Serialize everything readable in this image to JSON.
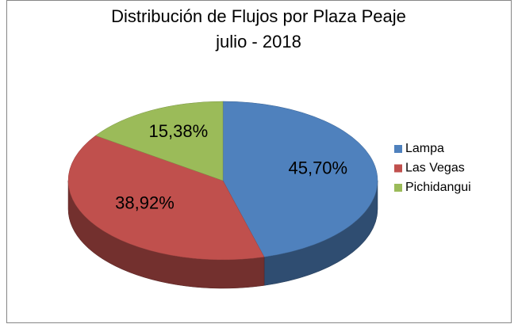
{
  "chart_data": {
    "type": "pie3d",
    "title": "Distribución de Flujos por Plaza Peaje",
    "subtitle": "julio - 2018",
    "categories": [
      "Lampa",
      "Las Vegas",
      "Pichidangui"
    ],
    "values": [
      45.7,
      38.92,
      15.38
    ],
    "value_labels": [
      "45,70%",
      "38,92%",
      "15,38%"
    ],
    "colors": [
      "#4f81bd",
      "#c0504d",
      "#9bbb59"
    ],
    "legend": "right"
  }
}
